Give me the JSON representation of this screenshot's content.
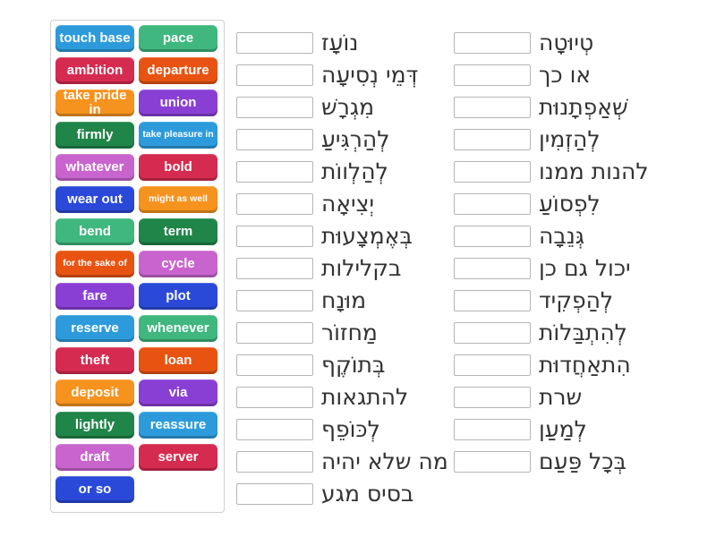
{
  "palette": {
    "blue": "#2d9bdb",
    "seafoam": "#3fb77e",
    "crimson": "#d62b50",
    "vermillion": "#e85312",
    "orange": "#f6921e",
    "purple": "#8a3fd4",
    "darkgreen": "#1f8549",
    "royal": "#2b49d8",
    "orchid": "#c964cf"
  },
  "word_bank": {
    "tiles": [
      {
        "label": "touch base",
        "color": "#2d9bdb",
        "small": false
      },
      {
        "label": "pace",
        "color": "#3fb77e",
        "small": false
      },
      {
        "label": "ambition",
        "color": "#d62b50",
        "small": false
      },
      {
        "label": "departure",
        "color": "#e85312",
        "small": false
      },
      {
        "label": "take pride in",
        "color": "#f6921e",
        "small": false
      },
      {
        "label": "union",
        "color": "#8a3fd4",
        "small": false
      },
      {
        "label": "firmly",
        "color": "#1f8549",
        "small": false
      },
      {
        "label": "take pleasure in",
        "color": "#2d9bdb",
        "small": true
      },
      {
        "label": "whatever",
        "color": "#c964cf",
        "small": false
      },
      {
        "label": "bold",
        "color": "#d62b50",
        "small": false
      },
      {
        "label": "wear out",
        "color": "#2b49d8",
        "small": false
      },
      {
        "label": "might as well",
        "color": "#f6921e",
        "small": true
      },
      {
        "label": "bend",
        "color": "#3fb77e",
        "small": false
      },
      {
        "label": "term",
        "color": "#1f8549",
        "small": false
      },
      {
        "label": "for the sake of",
        "color": "#e85312",
        "small": true
      },
      {
        "label": "cycle",
        "color": "#c964cf",
        "small": false
      },
      {
        "label": "fare",
        "color": "#8a3fd4",
        "small": false
      },
      {
        "label": "plot",
        "color": "#2b49d8",
        "small": false
      },
      {
        "label": "reserve",
        "color": "#2d9bdb",
        "small": false
      },
      {
        "label": "whenever",
        "color": "#3fb77e",
        "small": false
      },
      {
        "label": "theft",
        "color": "#d62b50",
        "small": false
      },
      {
        "label": "loan",
        "color": "#e85312",
        "small": false
      },
      {
        "label": "deposit",
        "color": "#f6921e",
        "small": false
      },
      {
        "label": "via",
        "color": "#8a3fd4",
        "small": false
      },
      {
        "label": "lightly",
        "color": "#1f8549",
        "small": false
      },
      {
        "label": "reassure",
        "color": "#2d9bdb",
        "small": false
      },
      {
        "label": "draft",
        "color": "#c964cf",
        "small": false
      },
      {
        "label": "server",
        "color": "#d62b50",
        "small": false
      },
      {
        "label": "or so",
        "color": "#2b49d8",
        "small": false
      }
    ]
  },
  "middle_column": {
    "rows": [
      "נוֹעָז",
      "דְּמֵי נְסִיעָה",
      "מִגְרָשׁ",
      "לְהַרְגִּיעַ",
      "לְהַלְווֹת",
      "יְצִיאָה",
      "בְּאֶמְצָעוּת",
      "בקלילות",
      "מוּנָח",
      "מַחזוֹר",
      "בְּתוֹקֶף",
      "להתגאות",
      "לְכּוֹפֵף",
      "מה שלא יהיה",
      "בסיס מגע"
    ]
  },
  "right_column": {
    "rows": [
      "טְיוּטָה",
      "או כך",
      "שְׁאַפְתָנוּת",
      "לְהַזְמִין",
      "להנות ממנו",
      "לִפְסוֹעַ",
      "גְּנֵבָה",
      "יכול גם כן",
      "לְהַפְקִיד",
      "לְהִתְבַּלוֹת",
      "הִתאַחֲדוּת",
      "שרת",
      "לְמַעַן",
      "בְּכָל פַּעַם"
    ]
  },
  "layout_colors": {
    "background": "#ffffff",
    "panel_border": "#cfcfcf",
    "answer_box_border": "#b5b5b5",
    "text": "#333333"
  }
}
